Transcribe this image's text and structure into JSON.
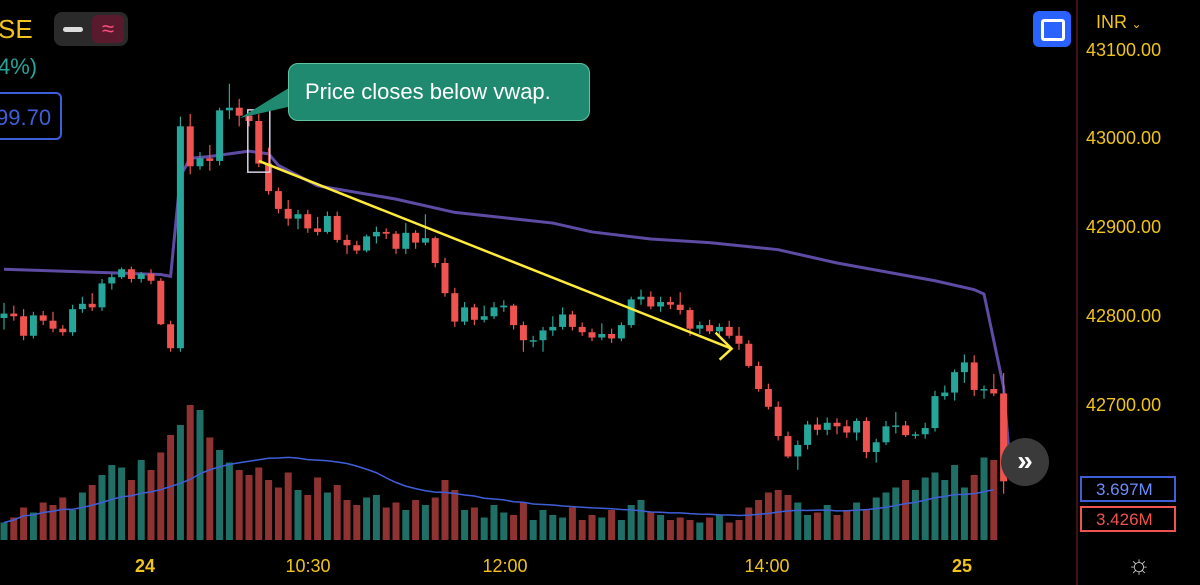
{
  "header": {
    "symbol_fragment": "SE",
    "change_fragment": "4%)",
    "price_box": "99.70",
    "minus_icon": "minus-icon",
    "indicator_icon": "wave-icon",
    "fullscreen_icon": "fullscreen-icon",
    "currency": "INR",
    "currency_caret": "chevron-down-icon"
  },
  "annotation": {
    "text": "Price closes below vwap."
  },
  "volume_labels": {
    "blue": "3.697M",
    "red": "3.426M"
  },
  "scroll_button_icon": "double-chevron-right-icon",
  "settings_icon": "gear-icon",
  "colors": {
    "up": "#26a69a",
    "down": "#ef5350",
    "vwap": "#5e4ba3",
    "volume_ma": "#3f5fd8",
    "trendline": "#ffeb3b",
    "annotation_bg": "#1f8a70",
    "axis_text": "#f0c419"
  },
  "chart_data": {
    "type": "candlestick",
    "y_axis": {
      "ticks": [
        "43100.00",
        "43000.00",
        "42900.00",
        "42800.00",
        "42700.00"
      ],
      "ylim": [
        42600,
        43125
      ]
    },
    "x_axis": {
      "ticks": [
        {
          "label": "24",
          "bold": true
        },
        {
          "label": "10:30",
          "bold": false
        },
        {
          "label": "12:00",
          "bold": false
        },
        {
          "label": "14:00",
          "bold": false
        },
        {
          "label": "25",
          "bold": true
        }
      ]
    },
    "candles": [
      [
        42798,
        42815,
        42785,
        42803
      ],
      [
        42803,
        42812,
        42795,
        42800
      ],
      [
        42800,
        42808,
        42773,
        42778
      ],
      [
        42778,
        42805,
        42775,
        42801
      ],
      [
        42801,
        42806,
        42790,
        42795
      ],
      [
        42795,
        42805,
        42782,
        42786
      ],
      [
        42786,
        42790,
        42778,
        42782
      ],
      [
        42782,
        42813,
        42778,
        42808
      ],
      [
        42808,
        42822,
        42804,
        42814
      ],
      [
        42814,
        42826,
        42806,
        42810
      ],
      [
        42810,
        42842,
        42806,
        42837
      ],
      [
        42837,
        42848,
        42830,
        42844
      ],
      [
        42844,
        42855,
        42842,
        42853
      ],
      [
        42853,
        42856,
        42838,
        42842
      ],
      [
        42842,
        42850,
        42838,
        42848
      ],
      [
        42848,
        42853,
        42836,
        42840
      ],
      [
        42840,
        42843,
        42790,
        42791
      ],
      [
        42791,
        42795,
        42760,
        42764
      ],
      [
        42764,
        43025,
        42760,
        43014
      ],
      [
        43014,
        43028,
        42960,
        42969
      ],
      [
        42969,
        42985,
        42965,
        42978
      ],
      [
        42978,
        42993,
        42964,
        42975
      ],
      [
        42975,
        43035,
        42970,
        43032
      ],
      [
        43032,
        43062,
        43022,
        43035
      ],
      [
        43035,
        43045,
        43014,
        43026
      ],
      [
        43026,
        43028,
        43014,
        43020
      ],
      [
        43020,
        43028,
        42968,
        42972
      ],
      [
        42972,
        42990,
        42937,
        42941
      ],
      [
        42941,
        42945,
        42916,
        42921
      ],
      [
        42921,
        42931,
        42902,
        42910
      ],
      [
        42910,
        42920,
        42898,
        42915
      ],
      [
        42915,
        42920,
        42894,
        42899
      ],
      [
        42899,
        42912,
        42891,
        42895
      ],
      [
        42895,
        42918,
        42893,
        42913
      ],
      [
        42913,
        42918,
        42883,
        42886
      ],
      [
        42886,
        42892,
        42870,
        42880
      ],
      [
        42880,
        42885,
        42870,
        42874
      ],
      [
        42874,
        42892,
        42872,
        42890
      ],
      [
        42890,
        42901,
        42882,
        42895
      ],
      [
        42895,
        42899,
        42887,
        42893
      ],
      [
        42893,
        42896,
        42870,
        42876
      ],
      [
        42876,
        42905,
        42870,
        42894
      ],
      [
        42894,
        42897,
        42876,
        42883
      ],
      [
        42883,
        42915,
        42880,
        42888
      ],
      [
        42888,
        42890,
        42855,
        42860
      ],
      [
        42860,
        42866,
        42822,
        42826
      ],
      [
        42826,
        42832,
        42788,
        42794
      ],
      [
        42794,
        42816,
        42790,
        42810
      ],
      [
        42810,
        42814,
        42790,
        42796
      ],
      [
        42796,
        42812,
        42793,
        42800
      ],
      [
        42800,
        42816,
        42797,
        42810
      ],
      [
        42810,
        42818,
        42805,
        42812
      ],
      [
        42812,
        42814,
        42785,
        42790
      ],
      [
        42790,
        42794,
        42760,
        42773
      ],
      [
        42773,
        42778,
        42765,
        42773
      ],
      [
        42773,
        42788,
        42760,
        42784
      ],
      [
        42784,
        42800,
        42778,
        42788
      ],
      [
        42788,
        42810,
        42785,
        42802
      ],
      [
        42802,
        42806,
        42784,
        42788
      ],
      [
        42788,
        42793,
        42778,
        42782
      ],
      [
        42782,
        42786,
        42772,
        42776
      ],
      [
        42776,
        42792,
        42773,
        42780
      ],
      [
        42780,
        42786,
        42770,
        42775
      ],
      [
        42775,
        42793,
        42772,
        42790
      ],
      [
        42790,
        42822,
        42787,
        42819
      ],
      [
        42819,
        42830,
        42813,
        42822
      ],
      [
        42822,
        42828,
        42808,
        42811
      ],
      [
        42811,
        42822,
        42805,
        42816
      ],
      [
        42816,
        42822,
        42808,
        42813
      ],
      [
        42813,
        42827,
        42802,
        42807
      ],
      [
        42807,
        42810,
        42778,
        42786
      ],
      [
        42786,
        42794,
        42780,
        42790
      ],
      [
        42790,
        42796,
        42780,
        42783
      ],
      [
        42783,
        42792,
        42778,
        42788
      ],
      [
        42788,
        42795,
        42775,
        42778
      ],
      [
        42778,
        42788,
        42762,
        42769
      ],
      [
        42769,
        42773,
        42742,
        42744
      ],
      [
        42744,
        42749,
        42715,
        42718
      ],
      [
        42718,
        42724,
        42695,
        42698
      ],
      [
        42698,
        42704,
        42660,
        42665
      ],
      [
        42665,
        42670,
        42640,
        42642
      ],
      [
        42642,
        42660,
        42627,
        42655
      ],
      [
        42655,
        42682,
        42650,
        42678
      ],
      [
        42678,
        42686,
        42666,
        42672
      ],
      [
        42672,
        42686,
        42666,
        42680
      ],
      [
        42680,
        42685,
        42667,
        42676
      ],
      [
        42676,
        42683,
        42663,
        42669
      ],
      [
        42669,
        42685,
        42660,
        42682
      ],
      [
        42682,
        42686,
        42640,
        42647
      ],
      [
        42647,
        42662,
        42635,
        42658
      ],
      [
        42658,
        42682,
        42655,
        42676
      ],
      [
        42676,
        42692,
        42668,
        42677
      ],
      [
        42677,
        42682,
        42664,
        42666
      ],
      [
        42666,
        42670,
        42662,
        42667
      ],
      [
        42667,
        42680,
        42662,
        42674
      ],
      [
        42674,
        42716,
        42670,
        42710
      ],
      [
        42710,
        42722,
        42706,
        42714
      ],
      [
        42714,
        42740,
        42705,
        42737
      ],
      [
        42737,
        42757,
        42725,
        42748
      ],
      [
        42748,
        42756,
        42710,
        42717
      ],
      [
        42717,
        42722,
        42707,
        42718
      ],
      [
        42718,
        42735,
        42710,
        42713
      ],
      [
        42713,
        42736,
        42600,
        42614
      ]
    ],
    "volumes": [
      0.7,
      0.9,
      1.3,
      1.1,
      1.5,
      1.4,
      1.7,
      1.2,
      1.9,
      2.2,
      2.6,
      3.0,
      2.9,
      2.4,
      3.2,
      2.8,
      3.5,
      4.2,
      4.6,
      5.4,
      5.2,
      4.1,
      3.6,
      3.1,
      2.8,
      2.6,
      2.9,
      2.4,
      2.1,
      2.7,
      2.0,
      1.8,
      2.5,
      1.9,
      2.2,
      1.6,
      1.4,
      1.7,
      1.8,
      1.3,
      1.5,
      1.2,
      1.6,
      1.4,
      1.7,
      2.4,
      2.0,
      1.2,
      1.3,
      0.9,
      1.4,
      1.1,
      1.0,
      1.5,
      0.8,
      1.2,
      1.0,
      0.9,
      1.3,
      0.8,
      1.0,
      0.9,
      1.2,
      0.8,
      1.4,
      1.6,
      1.1,
      1.0,
      0.8,
      0.9,
      0.8,
      0.7,
      0.9,
      1.0,
      0.7,
      0.8,
      1.3,
      1.6,
      1.9,
      2.0,
      1.8,
      1.5,
      1.0,
      1.1,
      1.4,
      1.0,
      1.2,
      1.5,
      1.2,
      1.7,
      1.9,
      2.1,
      2.4,
      2.0,
      2.5,
      2.7,
      2.4,
      3.0,
      2.1,
      2.6,
      3.3,
      3.2
    ],
    "vwap": [
      [
        0,
        42853
      ],
      [
        16,
        42847
      ],
      [
        17,
        42845
      ],
      [
        18,
        42958
      ],
      [
        19,
        42978
      ],
      [
        21,
        42980
      ],
      [
        25,
        42986
      ],
      [
        27,
        42983
      ],
      [
        28,
        42970
      ],
      [
        32,
        42947
      ],
      [
        40,
        42932
      ],
      [
        46,
        42917
      ],
      [
        56,
        42905
      ],
      [
        60,
        42895
      ],
      [
        66,
        42887
      ],
      [
        72,
        42883
      ],
      [
        79,
        42875
      ],
      [
        85,
        42860
      ],
      [
        90,
        42850
      ],
      [
        95,
        42840
      ],
      [
        99,
        42830
      ],
      [
        100,
        42825
      ],
      [
        102,
        42720
      ],
      [
        102.6,
        42640
      ]
    ],
    "trendline": [
      [
        26,
        42975
      ],
      [
        62,
        42786
      ]
    ],
    "highlight_candle_index": 26
  }
}
